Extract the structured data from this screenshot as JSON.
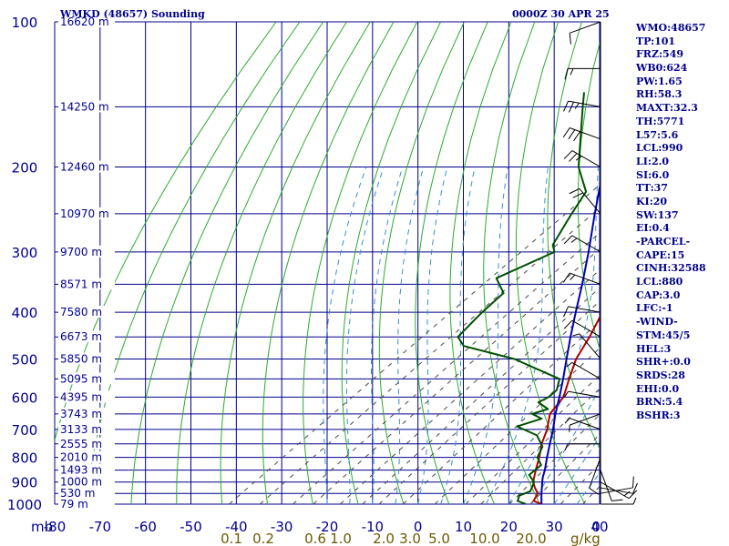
{
  "title_left": "WMKD (48657) Sounding",
  "title_right": "0000Z 30 APR 25",
  "colors": {
    "frame": "#00008b",
    "dry_adiabat": "#2eaa2e",
    "temperature": "#b00000",
    "parcel": "#0000b0",
    "dewpoint": "#005000",
    "wind_barb": "#000000",
    "mixing_ratio": "#4a4a4a",
    "moist_adiabat": "#3a8fd0",
    "mixing_label": "#6b5a00",
    "background": "#ffffff"
  },
  "stats": [
    "WMO:48657",
    "TP:101",
    "FRZ:549",
    "WB0:624",
    "PW:1.65",
    "RH:58.3",
    "MAXT:32.3",
    "TH:5771",
    "L57:5.6",
    "LCL:990",
    "LI:2.0",
    "SI:6.0",
    "TT:37",
    "KI:20",
    "SW:137",
    "EI:0.4",
    "-PARCEL-",
    "CAPE:15",
    "CINH:32588",
    "LCL:880",
    "CAP:3.0",
    "LFC:-1",
    "-WIND-",
    "STM:45/5",
    "HEL:3",
    "SHR+:0.0",
    "SRDS:28",
    "EHI:0.0",
    "BRN:5.4",
    "BSHR:3"
  ],
  "chart_data": {
    "type": "line",
    "title": "WMKD (48657) Sounding",
    "xlabel": "",
    "ylabel": "mb",
    "xlim": [
      -80,
      0
    ],
    "ylim": [
      1000,
      100
    ],
    "grid": true,
    "x_ticks": [
      "-80",
      "-70",
      "-60",
      "-50",
      "-40",
      "-30",
      "-20",
      "-10",
      "0",
      "10",
      "20",
      "30",
      "40",
      "0"
    ],
    "pressure_labels": [
      "100",
      "200",
      "300",
      "400",
      "500",
      "600",
      "700",
      "800",
      "900",
      "1000"
    ],
    "mixing_ratio_labels": [
      "0.1",
      "0.2",
      "0.6",
      "1.0",
      "2.0",
      "3.0",
      "5.0",
      "10.0",
      "20.0"
    ],
    "mixing_unit_label": "g/kg",
    "height_labels": [
      {
        "p": 100,
        "label": "16620 m"
      },
      {
        "p": 150,
        "label": "14250 m"
      },
      {
        "p": 200,
        "label": "12460 m"
      },
      {
        "p": 250,
        "label": "10970 m"
      },
      {
        "p": 300,
        "label": "9700 m"
      },
      {
        "p": 350,
        "label": "8571 m"
      },
      {
        "p": 400,
        "label": "7580 m"
      },
      {
        "p": 450,
        "label": "6673 m"
      },
      {
        "p": 500,
        "label": "5850 m"
      },
      {
        "p": 550,
        "label": "5095 m"
      },
      {
        "p": 600,
        "label": "4395 m"
      },
      {
        "p": 650,
        "label": "3743 m"
      },
      {
        "p": 700,
        "label": "3133 m"
      },
      {
        "p": 750,
        "label": "2555 m"
      },
      {
        "p": 800,
        "label": "2010 m"
      },
      {
        "p": 850,
        "label": "1493 m"
      },
      {
        "p": 900,
        "label": "1000 m"
      },
      {
        "p": 950,
        "label": "530 m"
      },
      {
        "p": 1000,
        "label": "79 m"
      }
    ],
    "series": [
      {
        "key": "temperature",
        "points": [
          [
            1000,
            27.2
          ],
          [
            985,
            24.5
          ],
          [
            950,
            23.2
          ],
          [
            925,
            20.9
          ],
          [
            900,
            18.8
          ],
          [
            850,
            15.8
          ],
          [
            800,
            12.8
          ],
          [
            750,
            9.3
          ],
          [
            700,
            6.2
          ],
          [
            650,
            2.2
          ],
          [
            600,
            0.2
          ],
          [
            550,
            -4.0
          ],
          [
            500,
            -8.4
          ],
          [
            450,
            -12.0
          ],
          [
            400,
            -16.5
          ],
          [
            350,
            -21.8
          ],
          [
            300,
            -30.0
          ],
          [
            250,
            -39.3
          ],
          [
            200,
            -51.4
          ],
          [
            150,
            -66.5
          ],
          [
            101,
            -81.0
          ]
        ]
      },
      {
        "key": "parcel",
        "points": [
          [
            1000,
            27.2
          ],
          [
            950,
            24.0
          ],
          [
            900,
            20.8
          ],
          [
            880,
            19.5
          ],
          [
            850,
            17.8
          ],
          [
            800,
            14.5
          ],
          [
            750,
            11.1
          ],
          [
            700,
            7.5
          ],
          [
            650,
            3.4
          ],
          [
            600,
            -0.7
          ],
          [
            550,
            -5.3
          ],
          [
            500,
            -10.5
          ],
          [
            450,
            -16.2
          ],
          [
            400,
            -22.4
          ],
          [
            350,
            -29.3
          ],
          [
            300,
            -37.5
          ],
          [
            250,
            -47.5
          ],
          [
            200,
            -59.5
          ],
          [
            150,
            -73.5
          ],
          [
            130,
            -80.0
          ]
        ]
      },
      {
        "key": "dewpoint",
        "points": [
          [
            1000,
            23.8
          ],
          [
            985,
            21.0
          ],
          [
            960,
            19.8
          ],
          [
            940,
            20.9
          ],
          [
            900,
            19.0
          ],
          [
            870,
            15.8
          ],
          [
            830,
            15.5
          ],
          [
            800,
            12.4
          ],
          [
            760,
            10.3
          ],
          [
            720,
            5.7
          ],
          [
            690,
            -1.3
          ],
          [
            665,
            1.8
          ],
          [
            650,
            -1.7
          ],
          [
            635,
            0.3
          ],
          [
            615,
            -3.8
          ],
          [
            600,
            -3.1
          ],
          [
            580,
            -3.4
          ],
          [
            550,
            -6.1
          ],
          [
            500,
            -22.0
          ],
          [
            470,
            -37.0
          ],
          [
            450,
            -41.0
          ],
          [
            400,
            -43.0
          ],
          [
            365,
            -44.0
          ],
          [
            340,
            -50.0
          ],
          [
            300,
            -45.0
          ],
          [
            290,
            -47.5
          ],
          [
            250,
            -52.6
          ],
          [
            225,
            -56.0
          ],
          [
            200,
            -65.0
          ],
          [
            150,
            -82.0
          ],
          [
            140,
            -86.0
          ]
        ]
      }
    ],
    "wind_barbs": [
      {
        "p": 1000,
        "dir": 90,
        "spd": 5
      },
      {
        "p": 950,
        "dir": 80,
        "spd": 10
      },
      {
        "p": 925,
        "dir": 100,
        "spd": 10
      },
      {
        "p": 900,
        "dir": 120,
        "spd": 15
      },
      {
        "p": 850,
        "dir": 160,
        "spd": 10
      },
      {
        "p": 800,
        "dir": 200,
        "spd": 10
      },
      {
        "p": 750,
        "dir": 270,
        "spd": 5
      },
      {
        "p": 700,
        "dir": 290,
        "spd": 5
      },
      {
        "p": 650,
        "dir": 250,
        "spd": 5
      },
      {
        "p": 600,
        "dir": 280,
        "spd": 5
      },
      {
        "p": 550,
        "dir": 300,
        "spd": 5
      },
      {
        "p": 500,
        "dir": 320,
        "spd": 5
      },
      {
        "p": 450,
        "dir": 300,
        "spd": 10
      },
      {
        "p": 400,
        "dir": 280,
        "spd": 10
      },
      {
        "p": 350,
        "dir": 290,
        "spd": 15
      },
      {
        "p": 300,
        "dir": 300,
        "spd": 15
      },
      {
        "p": 250,
        "dir": 320,
        "spd": 20
      },
      {
        "p": 200,
        "dir": 300,
        "spd": 25
      },
      {
        "p": 175,
        "dir": 290,
        "spd": 30
      },
      {
        "p": 150,
        "dir": 280,
        "spd": 25
      },
      {
        "p": 125,
        "dir": 270,
        "spd": 15
      },
      {
        "p": 100,
        "dir": 250,
        "spd": 10
      }
    ]
  }
}
